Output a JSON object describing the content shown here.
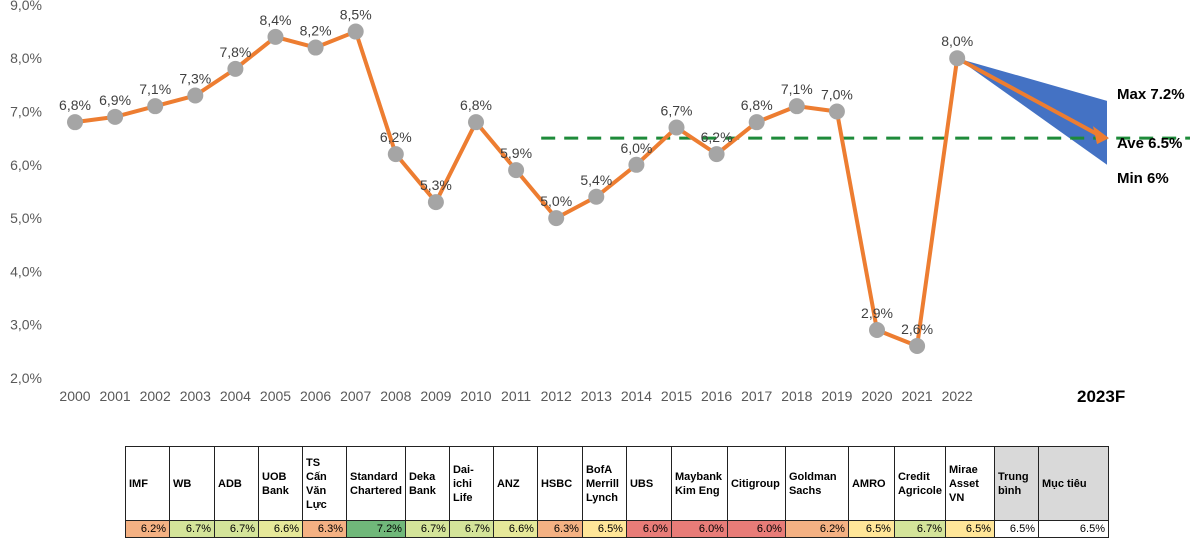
{
  "chart_data": {
    "type": "line",
    "title": "",
    "xlabel": "",
    "ylabel": "",
    "ylim": [
      2.0,
      9.0
    ],
    "y_ticks": [
      "2,0%",
      "3,0%",
      "4,0%",
      "5,0%",
      "6,0%",
      "7,0%",
      "8,0%",
      "9,0%"
    ],
    "y_tick_values": [
      2,
      3,
      4,
      5,
      6,
      7,
      8,
      9
    ],
    "categories": [
      "2000",
      "2001",
      "2002",
      "2003",
      "2004",
      "2005",
      "2006",
      "2007",
      "2008",
      "2009",
      "2010",
      "2011",
      "2012",
      "2013",
      "2014",
      "2015",
      "2016",
      "2017",
      "2018",
      "2019",
      "2020",
      "2021",
      "2022"
    ],
    "values": [
      6.8,
      6.9,
      7.1,
      7.3,
      7.8,
      8.4,
      8.2,
      8.5,
      6.2,
      5.3,
      6.8,
      5.9,
      5.0,
      5.4,
      6.0,
      6.7,
      6.2,
      6.8,
      7.1,
      7.0,
      2.9,
      2.6,
      8.0
    ],
    "data_labels": [
      "6,8%",
      "6,9%",
      "7,1%",
      "7,3%",
      "7,8%",
      "8,4%",
      "8,2%",
      "8,5%",
      "6,2%",
      "5,3%",
      "6,8%",
      "5,9%",
      "5,0%",
      "5,4%",
      "6,0%",
      "6,7%",
      "6,2%",
      "6,8%",
      "7,1%",
      "7,0%",
      "2,9%",
      "2,6%",
      "8,0%"
    ],
    "forecast_label": "2023F",
    "forecast": {
      "max": 7.2,
      "ave": 6.5,
      "min": 6.0
    },
    "forecast_labels": {
      "max": "Max 7.2%",
      "ave": "Ave 6.5%",
      "min": "Min 6%"
    },
    "target_line": 6.5,
    "target_line_start": "2012",
    "colors": {
      "line": "#ED7D31",
      "marker": "#A5A5A5",
      "fan": "#4472C4",
      "target": "#1E8B3A"
    }
  },
  "table": {
    "headers": [
      "IMF",
      "WB",
      "ADB",
      "UOB Bank",
      "TS Cấn Văn Lực",
      "Standard Chartered",
      "Deka Bank",
      "Dai-ichi Life",
      "ANZ",
      "HSBC",
      "BofA Merrill Lynch",
      "UBS",
      "Maybank Kim Eng",
      "Citigroup",
      "Goldman Sachs",
      "AMRO",
      "Credit Agricole",
      "Mirae Asset VN",
      "Trung bình",
      "Mục tiêu"
    ],
    "values": [
      "6.2%",
      "6.7%",
      "6.7%",
      "6.6%",
      "6.3%",
      "7.2%",
      "6.7%",
      "6.7%",
      "6.6%",
      "6.3%",
      "6.5%",
      "6.0%",
      "6.0%",
      "6.0%",
      "6.2%",
      "6.5%",
      "6.7%",
      "6.5%",
      "6.5%",
      "6.5%"
    ],
    "colors": [
      "#F4B183",
      "#D4E49A",
      "#D4E49A",
      "#E6E89A",
      "#F4B183",
      "#70B87A",
      "#D4E49A",
      "#D4E49A",
      "#E6E89A",
      "#F4B183",
      "#FFE699",
      "#E87C78",
      "#E87C78",
      "#E87C78",
      "#F4B183",
      "#FFE699",
      "#D4E49A",
      "#FFE699",
      "#FFFFFF",
      "#FFFFFF"
    ]
  }
}
